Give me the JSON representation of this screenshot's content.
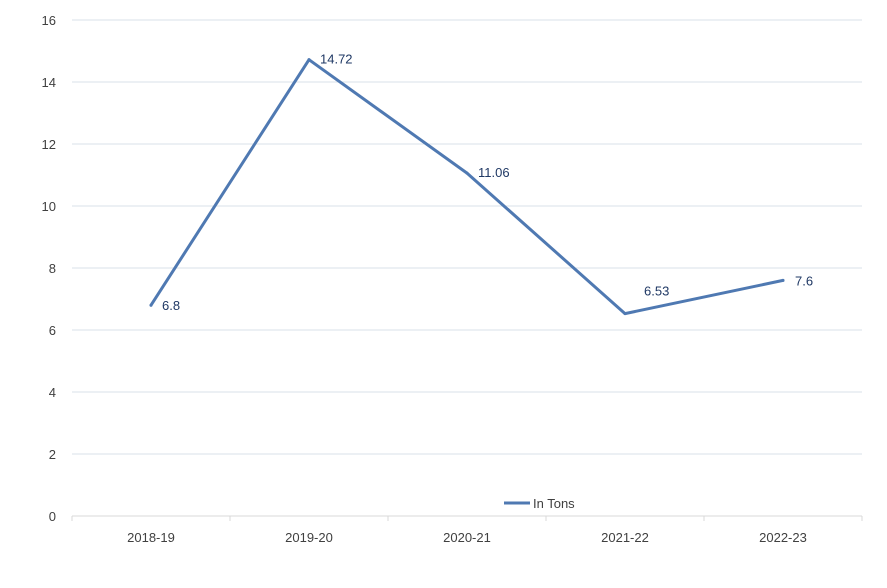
{
  "chart_data": {
    "type": "line",
    "categories": [
      "2018-19",
      "2019-20",
      "2020-21",
      "2021-22",
      "2022-23"
    ],
    "series": [
      {
        "name": "In Tons",
        "values": [
          6.8,
          14.72,
          11.06,
          6.53,
          7.6
        ],
        "color": "#4f79b2"
      }
    ],
    "data_labels": [
      "6.8",
      "14.72",
      "11.06",
      "6.53",
      "7.6"
    ],
    "ylim": [
      0,
      16
    ],
    "y_ticks": [
      "0",
      "2",
      "4",
      "6",
      "8",
      "10",
      "12",
      "14",
      "16"
    ],
    "grid": true,
    "legend_position": "bottom-center"
  }
}
